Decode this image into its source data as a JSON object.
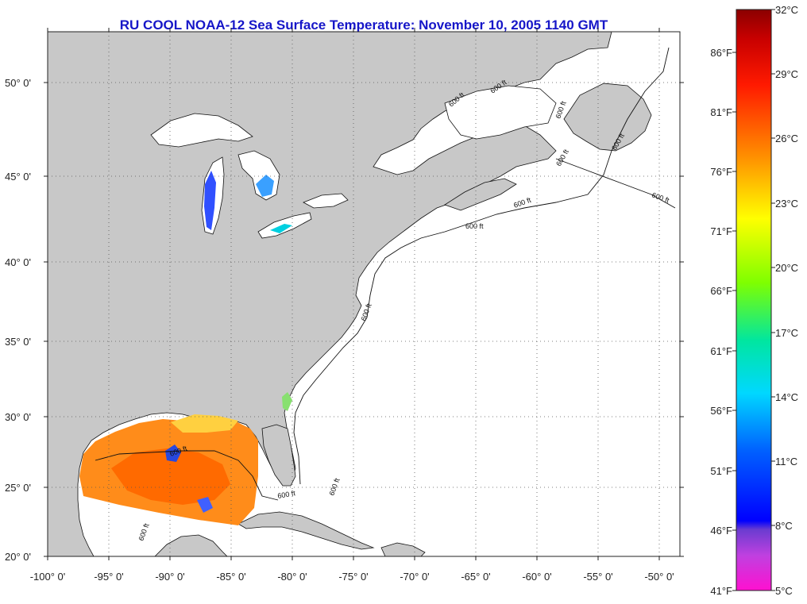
{
  "title": "RU COOL  NOAA-12  Sea Surface Temperature:  November 10, 2005 1140 GMT",
  "map": {
    "lon_ticks": [
      "-100° 0'",
      "-95° 0'",
      "-90° 0'",
      "-85° 0'",
      "-80° 0'",
      "-75° 0'",
      "-70° 0'",
      "-65° 0'",
      "-60° 0'",
      "-55° 0'",
      "-50° 0'"
    ],
    "lat_ticks": [
      "20° 0'",
      "25° 0'",
      "30° 0'",
      "35° 0'",
      "40° 0'",
      "45° 0'",
      "50° 0'"
    ],
    "contour_label": "600 ft",
    "colors": {
      "land": "#c8c8c8",
      "ocean": "#ffffff",
      "grid": "#666666"
    }
  },
  "colorbar": {
    "celsius": [
      "32°C",
      "29°C",
      "26°C",
      "23°C",
      "20°C",
      "17°C",
      "14°C",
      "11°C",
      "8°C",
      "5°C"
    ],
    "fahrenheit": [
      "86°F",
      "81°F",
      "76°F",
      "71°F",
      "66°F",
      "61°F",
      "56°F",
      "51°F",
      "46°F",
      "41°F"
    ],
    "colors": [
      "#8b0000",
      "#ff0000",
      "#ff8c00",
      "#ffff00",
      "#7fff00",
      "#00e0c0",
      "#00bfff",
      "#0000ff",
      "#8b4bdc",
      "#ff00cc"
    ]
  }
}
